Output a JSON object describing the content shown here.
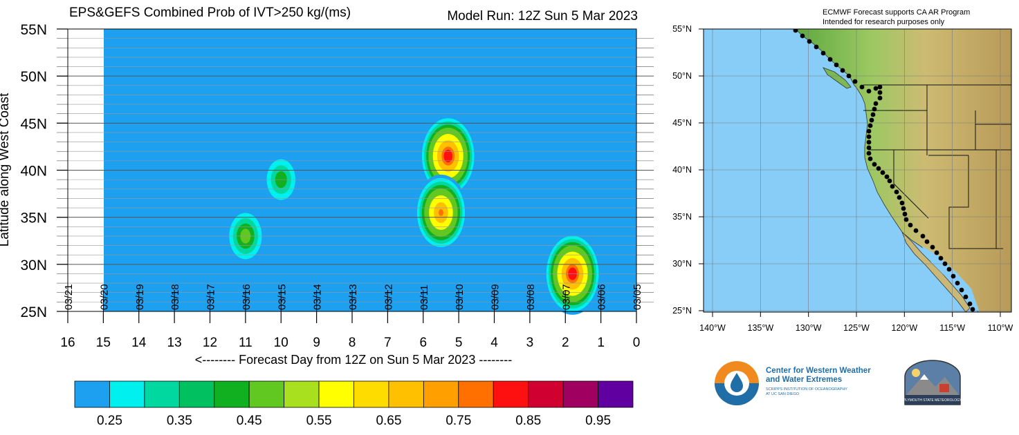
{
  "chart_data": [
    {
      "type": "heatmap",
      "title": "EPS&GEFS Combined Prob of IVT>250 kg/(ms)",
      "subtitle": "Model Run: 12Z Sun 5 Mar 2023",
      "xlabel": "<-------- Forecast Day from 12Z on Sun 5 Mar 2023 --------",
      "ylabel": "Latitude along West Coast",
      "xlim": [
        16,
        0
      ],
      "ylim": [
        25,
        55
      ],
      "x_ticks": [
        "16",
        "15",
        "14",
        "13",
        "12",
        "11",
        "10",
        "9",
        "8",
        "7",
        "6",
        "5",
        "4",
        "3",
        "2",
        "1",
        "0"
      ],
      "y_ticks": [
        "25N",
        "30N",
        "35N",
        "40N",
        "45N",
        "50N",
        "55N"
      ],
      "date_labels": [
        "03/21",
        "03/20",
        "03/19",
        "03/18",
        "03/17",
        "03/16",
        "03/15",
        "03/14",
        "03/13",
        "03/12",
        "03/11",
        "03/10",
        "03/09",
        "03/08",
        "03/07",
        "03/06",
        "03/05"
      ],
      "colorbar_labels": [
        "0.25",
        "0.35",
        "0.45",
        "0.55",
        "0.65",
        "0.75",
        "0.85",
        "0.95"
      ],
      "colorbar_colors": [
        "#1ea0f0",
        "#00f0f0",
        "#00d8a0",
        "#00c060",
        "#10b020",
        "#60c820",
        "#a8e020",
        "#ffff00",
        "#ffdc00",
        "#ffc000",
        "#ffa000",
        "#ff7000",
        "#ff1010",
        "#d00030",
        "#a00060",
        "#6000a0"
      ],
      "background_color": "#1ea0f0",
      "features": [
        {
          "day": 5.3,
          "lat": 41.5,
          "peak": 0.85
        },
        {
          "day": 5.5,
          "lat": 35.5,
          "peak": 0.75
        },
        {
          "day": 11.0,
          "lat": 33.0,
          "peak": 0.47
        },
        {
          "day": 10.0,
          "lat": 39.0,
          "peak": 0.42
        },
        {
          "day": 1.8,
          "lat": 29.0,
          "peak": 0.85
        }
      ]
    },
    {
      "type": "map",
      "title": "ECMWF Forecast supports CA AR Program",
      "subtitle": "Intended for research purposes only",
      "lon_ticks": [
        "140°W",
        "135°W",
        "130°W",
        "125°W",
        "120°W",
        "115°W",
        "110°W"
      ],
      "lat_ticks": [
        "25°N",
        "30°N",
        "35°N",
        "40°N",
        "45°N",
        "50°N",
        "55°N"
      ]
    }
  ],
  "logos": {
    "cw3e_name": "Center for Western Weather and Water Extremes",
    "cw3e_line1": "Center for Western Weather",
    "cw3e_line2": "and Water Extremes",
    "cw3e_sub1": "SCRIPPS INSTITUTION OF OCEANOGRAPHY",
    "cw3e_sub2": "AT UC SAN DIEGO",
    "psu_text": "PLYMOUTH STATE METEOROLOGY"
  }
}
